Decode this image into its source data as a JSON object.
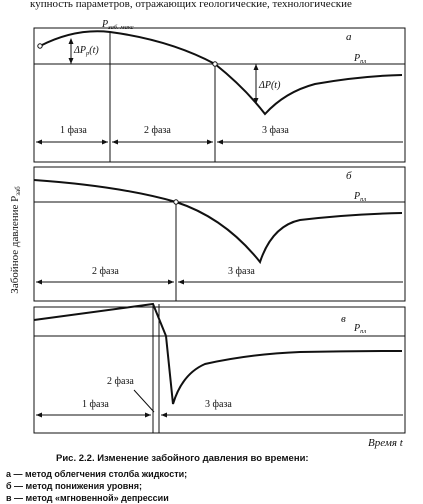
{
  "header_text": "купность параметров, отражающих геологические, технологические",
  "y_axis_label": "Забойное давление P",
  "y_axis_label_sub": "заб",
  "x_axis_label": "Время t",
  "panels": {
    "a": {
      "letter": "а",
      "p_max_label": "P",
      "p_max_sub": "заб. макс",
      "dp_left_label": "ΔP",
      "dp_left_sub": "р",
      "dp_left_tail": "(t)",
      "dp_right_label": "ΔP(t)",
      "p_pl_label": "P",
      "p_pl_sub": "пл",
      "phases": [
        "1 фаза",
        "2 фаза",
        "3 фаза"
      ]
    },
    "b": {
      "letter": "б",
      "p_pl_label": "P",
      "p_pl_sub": "пл",
      "phases": [
        "2 фаза",
        "3 фаза"
      ]
    },
    "v": {
      "letter": "в",
      "p_pl_label": "P",
      "p_pl_sub": "пл",
      "phases": [
        "1 фаза",
        "2 фаза",
        "3 фаза"
      ]
    }
  },
  "caption": "Рис. 2.2. Изменение забойного давления во времени:",
  "legend": [
    "а — метод облегчения столба жидкости;",
    "б — метод понижения уровня;",
    "в — метод «мгновенной» депрессии"
  ]
}
